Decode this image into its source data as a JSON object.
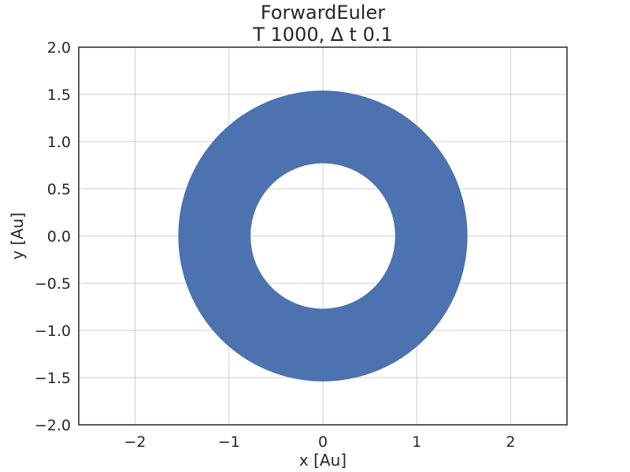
{
  "chart_data": {
    "type": "line",
    "title_lines": [
      "ForwardEuler",
      "T 1000, ∆ t 0.1"
    ],
    "xlabel": "x [Au]",
    "ylabel": "y [Au]",
    "xlim": [
      -2.6,
      2.6
    ],
    "ylim": [
      -2.0,
      2.0
    ],
    "xticks": [
      -2,
      -1,
      0,
      1,
      2
    ],
    "xtick_labels": [
      "−2",
      "−1",
      "0",
      "1",
      "2"
    ],
    "yticks": [
      -2.0,
      -1.5,
      -1.0,
      -0.5,
      0.0,
      0.5,
      1.0,
      1.5,
      2.0
    ],
    "ytick_labels": [
      "−2.0",
      "−1.5",
      "−1.0",
      "−0.5",
      "0.0",
      "0.5",
      "1.0",
      "1.5",
      "2.0"
    ],
    "grid": true,
    "series": [
      {
        "color": "#4c72b0",
        "shape": "filled annulus of spiralling orbit",
        "center": [
          0,
          0
        ],
        "inner_radius": 0.77,
        "outer_radius": 1.54
      }
    ]
  }
}
